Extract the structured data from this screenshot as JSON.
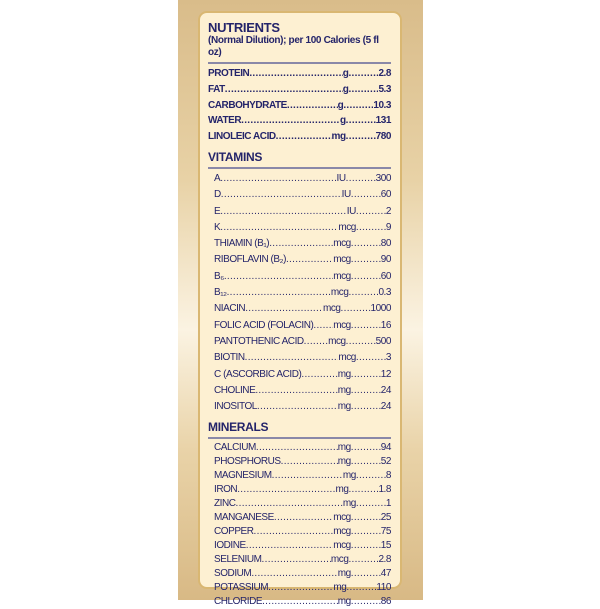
{
  "title": "NUTRIENTS",
  "subtitle": "(Normal Dilution); per 100 Calories (5 fl oz)",
  "nutrients": [
    {
      "name": "PROTEIN",
      "unit": "g",
      "value": "2.8"
    },
    {
      "name": "FAT",
      "unit": "g",
      "value": "5.3"
    },
    {
      "name": "CARBOHYDRATE",
      "unit": "g",
      "value": "10.3"
    },
    {
      "name": "WATER",
      "unit": "g",
      "value": "131"
    },
    {
      "name": "LINOLEIC ACID",
      "unit": "mg",
      "value": "780"
    }
  ],
  "vitamins_title": "VITAMINS",
  "vitamins": [
    {
      "name": "A",
      "unit": "IU",
      "value": "300"
    },
    {
      "name": "D",
      "unit": "IU",
      "value": "60"
    },
    {
      "name": "E",
      "unit": "IU",
      "value": "2"
    },
    {
      "name": "K",
      "unit": "mcg",
      "value": "9"
    },
    {
      "name": "THIAMIN (B₁)",
      "unit": "mcg",
      "value": "80"
    },
    {
      "name": "RIBOFLAVIN (B₂)",
      "unit": "mcg",
      "value": "90"
    },
    {
      "name": "B₆",
      "unit": "mcg",
      "value": "60"
    },
    {
      "name": "B₁₂",
      "unit": "mcg",
      "value": "0.3"
    },
    {
      "name": "NIACIN",
      "unit": "mcg",
      "value": "1000"
    },
    {
      "name": "FOLIC ACID (FOLACIN)",
      "unit": "mcg",
      "value": "16"
    },
    {
      "name": "PANTOTHENIC ACID",
      "unit": "mcg",
      "value": "500"
    },
    {
      "name": "BIOTIN",
      "unit": "mcg",
      "value": "3"
    },
    {
      "name": "C (ASCORBIC ACID)",
      "unit": "mg",
      "value": "12"
    },
    {
      "name": "CHOLINE",
      "unit": "mg",
      "value": "24"
    },
    {
      "name": "INOSITOL",
      "unit": "mg",
      "value": "24"
    }
  ],
  "minerals_title": "MINERALS",
  "minerals": [
    {
      "name": "CALCIUM",
      "unit": "mg",
      "value": "94"
    },
    {
      "name": "PHOSPHORUS",
      "unit": "mg",
      "value": "52"
    },
    {
      "name": "MAGNESIUM",
      "unit": "mg",
      "value": "8"
    },
    {
      "name": "IRON",
      "unit": "mg",
      "value": "1.8"
    },
    {
      "name": "ZINC",
      "unit": "mg",
      "value": "1"
    },
    {
      "name": "MANGANESE",
      "unit": "mcg",
      "value": "25"
    },
    {
      "name": "COPPER",
      "unit": "mcg",
      "value": "75"
    },
    {
      "name": "IODINE",
      "unit": "mcg",
      "value": "15"
    },
    {
      "name": "SELENIUM",
      "unit": "mcg",
      "value": "2.8"
    },
    {
      "name": "SODIUM",
      "unit": "mg",
      "value": "47"
    },
    {
      "name": "POTASSIUM",
      "unit": "mg",
      "value": "110"
    },
    {
      "name": "CHLORIDE",
      "unit": "mg",
      "value": "86"
    }
  ],
  "colors": {
    "text": "#24246a",
    "panel": "#fdf0d2",
    "border": "#d9b772"
  }
}
